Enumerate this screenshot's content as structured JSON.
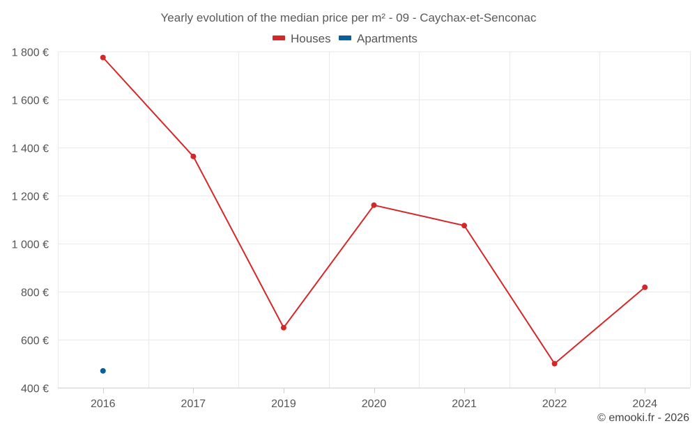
{
  "chart_data": {
    "type": "line",
    "title": "Yearly evolution of the median price per m² - 09 - Caychax-et-Senconac",
    "categories": [
      "2016",
      "2017",
      "2019",
      "2020",
      "2021",
      "2022",
      "2024"
    ],
    "series": [
      {
        "name": "Houses",
        "color": "#d62728",
        "values": [
          1775,
          1363,
          650,
          1160,
          1075,
          500,
          818
        ]
      },
      {
        "name": "Apartments",
        "color": "#08609a",
        "values": [
          470,
          null,
          null,
          null,
          null,
          null,
          null
        ]
      }
    ],
    "ylim": [
      400,
      1800
    ],
    "yticks": [
      400,
      600,
      800,
      1000,
      1200,
      1400,
      1600,
      1800
    ],
    "ytick_labels": [
      "400 €",
      "600 €",
      "800 €",
      "1 000 €",
      "1 200 €",
      "1 400 €",
      "1 600 €",
      "1 800 €"
    ],
    "grid": true,
    "legend_position": "top-center",
    "xlabel": "",
    "ylabel": ""
  },
  "credit": "© emooki.fr - 2026"
}
